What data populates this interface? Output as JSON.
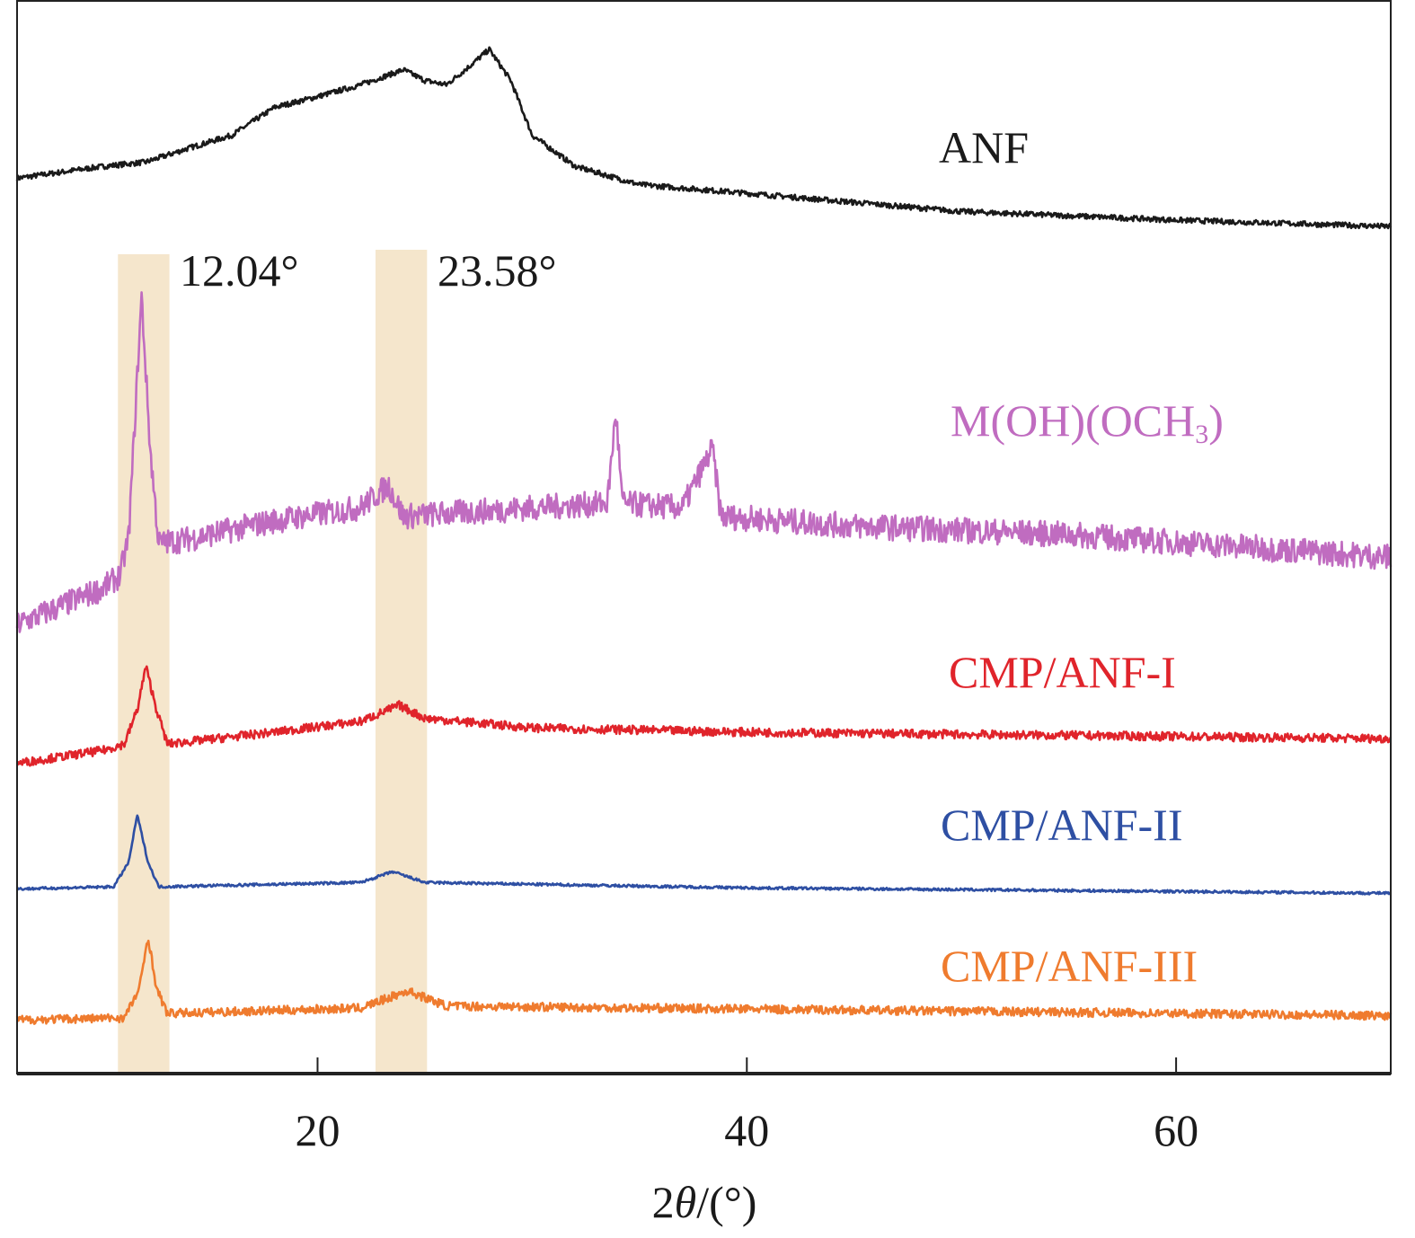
{
  "chart_data": {
    "type": "line",
    "title": "",
    "xlabel": "2θ/(°)",
    "xlabel_parts": {
      "pre": "2",
      "theta": "θ",
      "post": "/(°)"
    },
    "ylabel": "",
    "xlim": [
      6,
      70
    ],
    "ylim": [
      0,
      100
    ],
    "xticks": [
      20,
      40,
      60
    ],
    "xtick_labels": [
      "20",
      "40",
      "60"
    ],
    "grid": false,
    "highlight_bands": [
      {
        "range": [
          10.7,
          13.1
        ],
        "label": "12.04°",
        "color": "#f5e6cc"
      },
      {
        "range": [
          22.7,
          25.1
        ],
        "label": "23.58°",
        "color": "#f5e6cc"
      }
    ],
    "series": [
      {
        "name": "ANF",
        "color": "#1a1a1a",
        "noise": 0.25,
        "x": [
          6,
          10,
          12,
          14,
          16,
          18,
          20,
          22,
          24,
          25,
          26,
          27,
          28,
          29,
          30,
          32,
          35,
          40,
          50,
          60,
          70
        ],
        "y": [
          83.4,
          84.5,
          84.9,
          86.2,
          87.4,
          90.0,
          91.0,
          92.1,
          93.5,
          92.5,
          92.1,
          93.7,
          95.4,
          92.5,
          87.4,
          84.5,
          82.8,
          82.0,
          80.3,
          79.5,
          78.9
        ]
      },
      {
        "name": "M(OH)(OCH3)",
        "label_main": "M(OH)(OCH",
        "label_sub": "3",
        "label_end": ")",
        "color": "#c06cc0",
        "noise": 1.2,
        "x": [
          6,
          10,
          10.8,
          11.2,
          11.8,
          12.2,
          12.6,
          14,
          18,
          22,
          23.3,
          24,
          30,
          33.5,
          33.9,
          34.2,
          37,
          38.4,
          38.8,
          45,
          55,
          70
        ],
        "y": [
          41.8,
          45.2,
          46.4,
          50.0,
          72.4,
          58.2,
          49.4,
          49.8,
          51.5,
          52.7,
          54.8,
          51.9,
          52.7,
          53.1,
          61.7,
          53.1,
          52.7,
          58.2,
          51.9,
          51.0,
          50.2,
          48.1
        ]
      },
      {
        "name": "CMP/ANF-I",
        "color": "#e0242b",
        "noise": 0.4,
        "x": [
          6,
          10,
          11,
          11.6,
          12,
          12.5,
          13,
          18,
          22,
          23.8,
          25,
          30,
          40,
          70
        ],
        "y": [
          28.9,
          30.1,
          30.7,
          33.9,
          37.9,
          33.9,
          30.7,
          31.8,
          32.8,
          34.3,
          33.1,
          32.2,
          31.8,
          31.2
        ]
      },
      {
        "name": "CMP/ANF-II",
        "color": "#2e4fa3",
        "noise": 0.12,
        "x": [
          6,
          10.5,
          11.2,
          11.6,
          12.1,
          12.6,
          22,
          23.5,
          25,
          40,
          70
        ],
        "y": [
          17.2,
          17.4,
          19.7,
          24.1,
          19.7,
          17.4,
          17.8,
          18.8,
          17.8,
          17.3,
          16.8
        ]
      },
      {
        "name": "CMP/ANF-III",
        "color": "#ef7b2e",
        "noise": 0.4,
        "x": [
          6,
          11,
          11.7,
          12.1,
          12.5,
          13,
          22,
          24.2,
          26,
          70
        ],
        "y": [
          5.0,
          5.2,
          7.9,
          12.8,
          7.9,
          5.6,
          6.1,
          7.7,
          6.3,
          5.4
        ]
      }
    ]
  }
}
